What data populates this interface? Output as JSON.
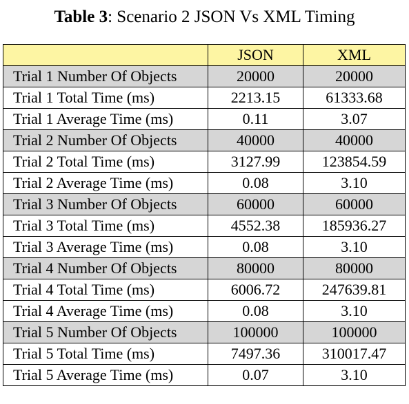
{
  "caption": {
    "label": "Table 3",
    "text": ": Scenario 2 JSON Vs XML Timing"
  },
  "table": {
    "columns": [
      "",
      "JSON",
      "XML"
    ],
    "rows": [
      {
        "label": "Trial 1 Number Of Objects",
        "json": "20000",
        "xml": "20000",
        "shaded": true
      },
      {
        "label": "Trial 1 Total Time (ms)",
        "json": "2213.15",
        "xml": "61333.68",
        "shaded": false
      },
      {
        "label": "Trial 1 Average Time (ms)",
        "json": "0.11",
        "xml": "3.07",
        "shaded": false
      },
      {
        "label": "Trial 2 Number Of Objects",
        "json": "40000",
        "xml": "40000",
        "shaded": true
      },
      {
        "label": "Trial 2 Total Time (ms)",
        "json": "3127.99",
        "xml": "123854.59",
        "shaded": false
      },
      {
        "label": "Trial 2 Average Time (ms)",
        "json": "0.08",
        "xml": "3.10",
        "shaded": false
      },
      {
        "label": "Trial 3 Number Of Objects",
        "json": "60000",
        "xml": "60000",
        "shaded": true
      },
      {
        "label": "Trial 3 Total Time (ms)",
        "json": "4552.38",
        "xml": "185936.27",
        "shaded": false
      },
      {
        "label": "Trial 3 Average Time (ms)",
        "json": "0.08",
        "xml": "3.10",
        "shaded": false
      },
      {
        "label": "Trial 4 Number Of Objects",
        "json": "80000",
        "xml": "80000",
        "shaded": true
      },
      {
        "label": "Trial 4 Total Time (ms)",
        "json": "6006.72",
        "xml": "247639.81",
        "shaded": false
      },
      {
        "label": "Trial 4 Average Time (ms)",
        "json": "0.08",
        "xml": "3.10",
        "shaded": false
      },
      {
        "label": "Trial 5 Number Of Objects",
        "json": "100000",
        "xml": "100000",
        "shaded": true
      },
      {
        "label": "Trial 5 Total Time (ms)",
        "json": "7497.36",
        "xml": "310017.47",
        "shaded": false
      },
      {
        "label": "Trial 5 Average Time (ms)",
        "json": "0.07",
        "xml": "3.10",
        "shaded": false
      }
    ]
  },
  "colors": {
    "header_background": "#fdf5a3",
    "shaded_row_background": "#d6d6d6"
  }
}
